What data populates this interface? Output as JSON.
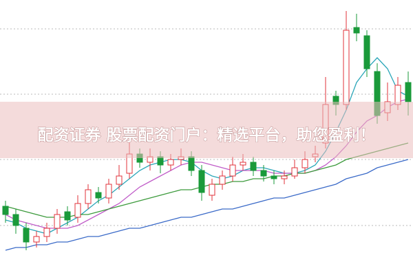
{
  "banner": {
    "text": "配资证券 股票配资门户：精选平台，助您盈利！"
  },
  "chart_data": {
    "type": "candlestick",
    "ylim": [
      0,
      100
    ],
    "up_color": "#e0303a",
    "down_color": "#1a9a3a",
    "open": [
      25,
      22,
      17,
      12,
      14,
      17,
      23,
      21,
      26,
      30,
      28,
      33,
      37,
      44,
      41,
      43,
      40,
      42,
      43,
      38,
      29,
      33,
      36,
      40,
      41,
      38,
      36,
      35,
      36,
      39,
      43,
      48,
      65,
      62,
      90,
      87,
      74,
      59,
      62,
      70
    ],
    "high": [
      27,
      24,
      19,
      16,
      19,
      24,
      25,
      29,
      33,
      32,
      35,
      40,
      50,
      46,
      46,
      45,
      44,
      46,
      45,
      40,
      35,
      38,
      43,
      44,
      43,
      40,
      38,
      38,
      42,
      45,
      47,
      72,
      67,
      96,
      95,
      89,
      77,
      70,
      72,
      74
    ],
    "low": [
      19,
      15,
      9,
      10,
      12,
      15,
      18,
      19,
      24,
      26,
      26,
      31,
      35,
      39,
      38,
      37,
      38,
      40,
      36,
      27,
      27,
      31,
      34,
      38,
      36,
      34,
      33,
      33,
      35,
      37,
      41,
      46,
      58,
      60,
      85,
      72,
      55,
      56,
      60,
      58
    ],
    "close": [
      22,
      18,
      12,
      14,
      17,
      22,
      20,
      26,
      31,
      28,
      33,
      36,
      44,
      41,
      43,
      40,
      42,
      43,
      38,
      30,
      33,
      36,
      40,
      41,
      38,
      36,
      35,
      36,
      39,
      42,
      44,
      62,
      62,
      89,
      88,
      75,
      58,
      63,
      69,
      63
    ],
    "series": [
      {
        "color": "#2aa6b8",
        "values": [
          20,
          19,
          17,
          16,
          15,
          17,
          19,
          21,
          24,
          27,
          29,
          32,
          35,
          38,
          40,
          41,
          42,
          42,
          41,
          38,
          36,
          35,
          36,
          38,
          39,
          39,
          38,
          37,
          37,
          38,
          40,
          45,
          52,
          60,
          70,
          75,
          79,
          75,
          67,
          65
        ]
      },
      {
        "color": "#c05cc8",
        "values": [
          22,
          20,
          19,
          18,
          17,
          17,
          17,
          18,
          20,
          22,
          24,
          26,
          29,
          32,
          34,
          36,
          38,
          40,
          41,
          41,
          40,
          39,
          38,
          38,
          38,
          38,
          37,
          37,
          37,
          37,
          38,
          40,
          43,
          47,
          52,
          56,
          58,
          61,
          63,
          64
        ]
      },
      {
        "color": "#3c9a3c",
        "values": [
          25,
          24,
          23,
          22,
          21,
          21,
          21,
          22,
          22,
          23,
          24,
          25,
          26,
          27,
          28,
          29,
          30,
          31,
          31,
          32,
          33,
          33,
          34,
          34,
          35,
          35,
          36,
          36,
          37,
          37,
          38,
          39,
          40,
          42,
          43,
          44,
          45,
          46,
          47,
          48
        ]
      },
      {
        "color": "#3a6ac8",
        "values": [
          9,
          10,
          10,
          11,
          11,
          12,
          12,
          13,
          14,
          14,
          15,
          16,
          17,
          17,
          18,
          19,
          20,
          21,
          21,
          22,
          23,
          24,
          24,
          25,
          26,
          27,
          28,
          28,
          29,
          30,
          31,
          32,
          33,
          35,
          36,
          37,
          39,
          40,
          41,
          42
        ]
      }
    ]
  }
}
